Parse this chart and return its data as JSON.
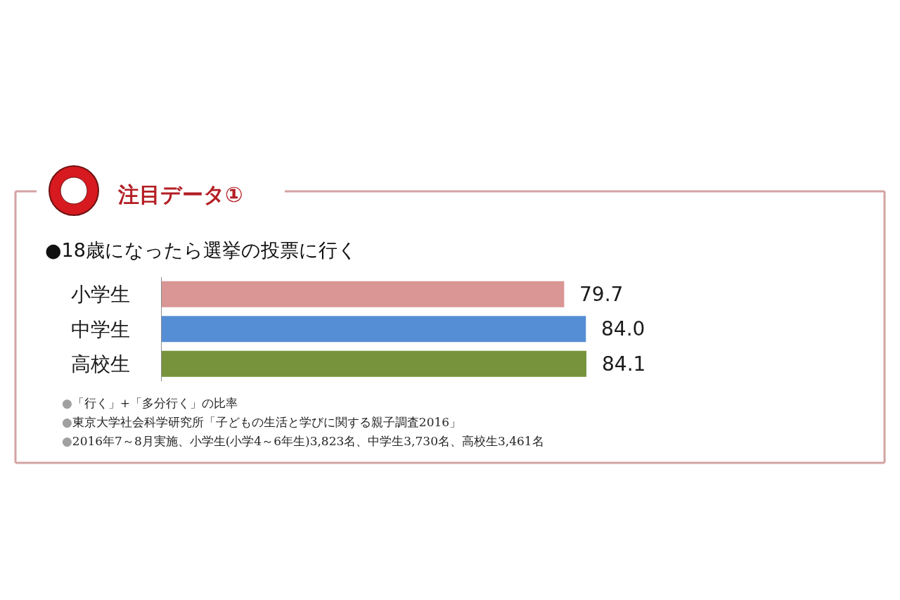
{
  "chart_data": {
    "type": "bar",
    "orientation": "horizontal",
    "title": "注目データ①",
    "subtitle": "●18歳になったら選挙の投票に行く",
    "categories": [
      "小学生",
      "中学生",
      "高校生"
    ],
    "values": [
      79.7,
      84.0,
      84.1
    ],
    "value_labels": [
      "79.7",
      "84.0",
      "84.1"
    ],
    "colors": [
      "#d99694",
      "#558ed5",
      "#77933c"
    ],
    "tick_labels": "y",
    "annotations": [
      "●「行く」+「多分行く」の比率",
      "●東京大学社会科学研究所「子どもの生活と学びに関する親子調査2016」",
      "●2016年7～8月実施、小学生(小学4～6年生)3,823名、中学生3,730名、高校生3,461名"
    ]
  }
}
